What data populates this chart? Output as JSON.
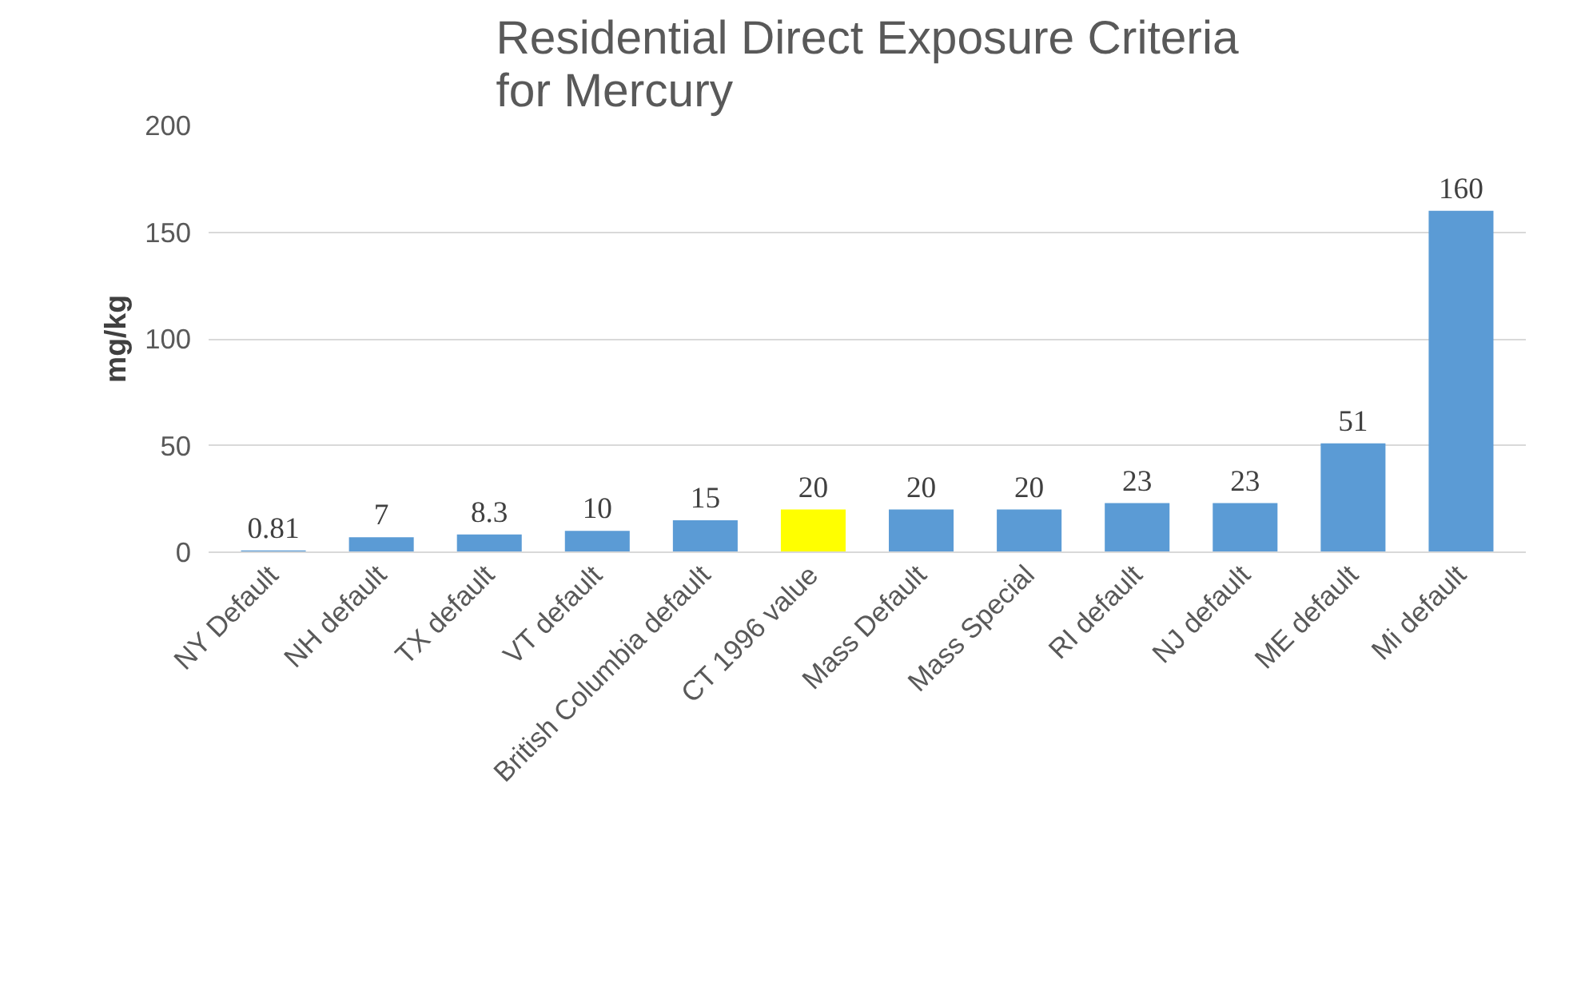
{
  "chart_data": {
    "type": "bar",
    "title": "Residential Direct Exposure Criteria\nfor Mercury",
    "ylabel": "mg/kg",
    "categories": [
      "NY Default",
      "NH default",
      "TX default",
      "VT default",
      "British Columbia default",
      "CT 1996 value",
      "Mass Default",
      "Mass Special",
      "RI default",
      "NJ default",
      "ME default",
      "Mi default"
    ],
    "values": [
      0.81,
      7,
      8.3,
      10,
      15,
      20,
      20,
      20,
      23,
      23,
      51,
      160
    ],
    "colors": [
      "#5b9bd5",
      "#5b9bd5",
      "#5b9bd5",
      "#5b9bd5",
      "#5b9bd5",
      "#ffff00",
      "#5b9bd5",
      "#5b9bd5",
      "#5b9bd5",
      "#5b9bd5",
      "#5b9bd5",
      "#5b9bd5"
    ],
    "ylim": [
      0,
      200
    ],
    "yticks": [
      0,
      50,
      100,
      150,
      200
    ],
    "grid": "y",
    "data_labels": true
  }
}
